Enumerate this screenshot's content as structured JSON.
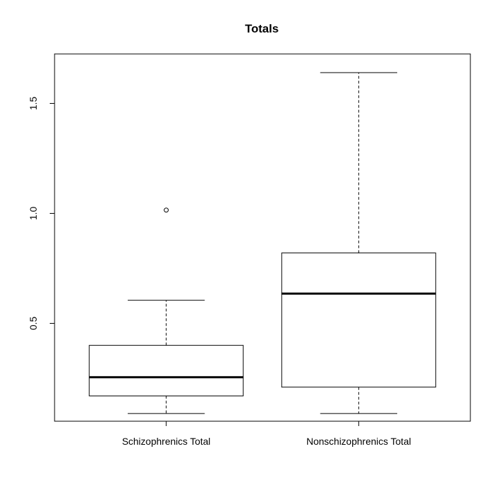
{
  "chart_data": {
    "type": "boxplot",
    "title": "Totals",
    "xlabel": "",
    "ylabel": "",
    "ylim": [
      0.055,
      1.7
    ],
    "y_ticks": [
      0.5,
      1.0,
      1.5
    ],
    "y_tick_labels": [
      "0.5",
      "1.0",
      "1.5"
    ],
    "categories": [
      "Schizophrenics Total",
      "Nonschizophrenics Total"
    ],
    "boxes": [
      {
        "label": "Schizophrenics Total",
        "whisker_low": 0.09,
        "q1": 0.17,
        "median": 0.255,
        "q3": 0.4,
        "whisker_high": 0.605,
        "outliers": [
          1.015
        ]
      },
      {
        "label": "Nonschizophrenics Total",
        "whisker_low": 0.09,
        "q1": 0.21,
        "median": 0.635,
        "q3": 0.82,
        "whisker_high": 1.64,
        "outliers": []
      }
    ],
    "grid": false,
    "legend": "none"
  }
}
